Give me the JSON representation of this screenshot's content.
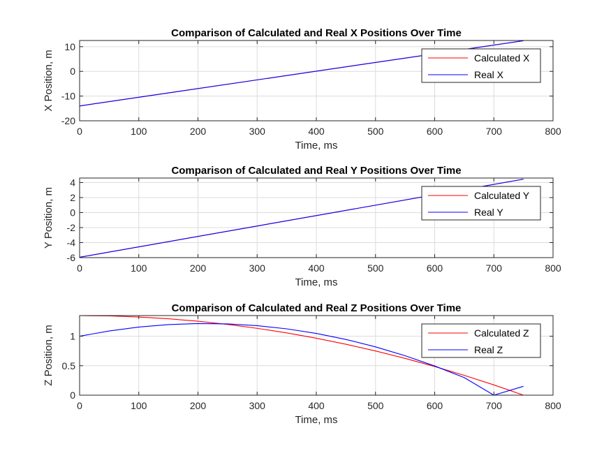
{
  "figure": {
    "background": "#ffffff",
    "grid_color": "#dcdcdc",
    "axis_color": "#262626"
  },
  "chart_data": [
    {
      "type": "line",
      "title": "Comparison of Calculated and Real X Positions Over Time",
      "xlabel": "Time, ms",
      "ylabel": "X Position, m",
      "xlim": [
        0,
        800
      ],
      "ylim": [
        -20,
        12.5
      ],
      "xticks": [
        0,
        100,
        200,
        300,
        400,
        500,
        600,
        700,
        800
      ],
      "yticks": [
        -20,
        -10,
        0,
        10
      ],
      "grid": true,
      "legend": "top-right",
      "series": [
        {
          "name": "Calculated X",
          "color": "#ff0000",
          "x": [
            0,
            750
          ],
          "y": [
            -14,
            12.4
          ]
        },
        {
          "name": "Real X",
          "color": "#0000ff",
          "x": [
            0,
            750
          ],
          "y": [
            -14,
            12.4
          ]
        }
      ]
    },
    {
      "type": "line",
      "title": "Comparison of Calculated and Real Y Positions Over Time",
      "xlabel": "Time, ms",
      "ylabel": "Y Position, m",
      "xlim": [
        0,
        800
      ],
      "ylim": [
        -6,
        4.6
      ],
      "xticks": [
        0,
        100,
        200,
        300,
        400,
        500,
        600,
        700,
        800
      ],
      "yticks": [
        -6,
        -4,
        -2,
        0,
        2,
        4
      ],
      "grid": true,
      "legend": "top-right",
      "series": [
        {
          "name": "Calculated Y",
          "color": "#ff0000",
          "x": [
            0,
            750
          ],
          "y": [
            -5.95,
            4.45
          ]
        },
        {
          "name": "Real Y",
          "color": "#0000ff",
          "x": [
            0,
            750
          ],
          "y": [
            -5.95,
            4.45
          ]
        }
      ]
    },
    {
      "type": "line",
      "title": "Comparison of Calculated and Real Z Positions Over Time",
      "xlabel": "Time, ms",
      "ylabel": "Z Position, m",
      "xlim": [
        0,
        800
      ],
      "ylim": [
        0,
        1.35
      ],
      "xticks": [
        0,
        100,
        200,
        300,
        400,
        500,
        600,
        700,
        800
      ],
      "yticks": [
        0,
        0.5,
        1
      ],
      "grid": true,
      "legend": "top-right",
      "series": [
        {
          "name": "Calculated Z",
          "color": "#ff0000",
          "x": [
            0,
            50,
            100,
            150,
            200,
            250,
            300,
            350,
            400,
            450,
            500,
            550,
            600,
            650,
            700,
            750
          ],
          "y": [
            1.35,
            1.344,
            1.326,
            1.296,
            1.254,
            1.2,
            1.134,
            1.056,
            0.966,
            0.864,
            0.75,
            0.624,
            0.486,
            0.336,
            0.174,
            0.0
          ]
        },
        {
          "name": "Real Z",
          "color": "#0000ff",
          "x": [
            0,
            50,
            100,
            150,
            200,
            250,
            300,
            350,
            400,
            450,
            500,
            550,
            600,
            650,
            700,
            750
          ],
          "y": [
            1.0,
            1.089,
            1.155,
            1.197,
            1.215,
            1.209,
            1.179,
            1.125,
            1.047,
            0.945,
            0.819,
            0.669,
            0.495,
            0.297,
            0.0,
            0.15
          ]
        }
      ]
    }
  ]
}
